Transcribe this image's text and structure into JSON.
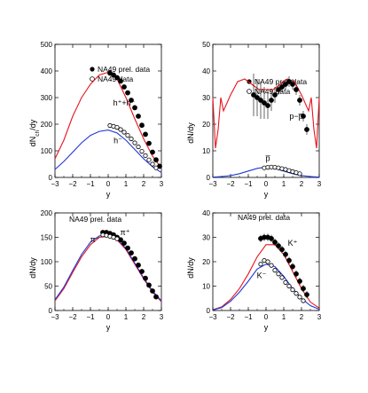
{
  "panels": [
    {
      "id": "tl",
      "ylabel": "dN_ch/dy",
      "ylabel_main": "dN",
      "ylabel_sub": "ch",
      "ylabel_tail": "/dy",
      "xlabel": "y",
      "legend": [
        {
          "marker": "filled",
          "label": "NA49 prel. data"
        },
        {
          "marker": "open",
          "label": "NA49 data"
        }
      ],
      "annotations": [
        {
          "text": "h⁺+h⁻",
          "x": 0.9,
          "y": 270
        },
        {
          "text": "h⁻",
          "x": 0.55,
          "y": 128
        }
      ]
    },
    {
      "id": "tr",
      "ylabel": "dN/dy",
      "xlabel": "y",
      "legend": [
        {
          "marker": "filled",
          "label": "NA49 prel. data"
        },
        {
          "marker": "open",
          "label": "NA49 data"
        }
      ],
      "annotations": [
        {
          "text": "p−p̅",
          "x": 1.7,
          "y": 22
        },
        {
          "text": "p̅",
          "x": 0.1,
          "y": 6.2
        }
      ]
    },
    {
      "id": "bl",
      "ylabel": "dN/dy",
      "xlabel": "y",
      "title": "NA49 prel. data",
      "annotations": [
        {
          "text": "π⁺",
          "x": 0.95,
          "y": 155
        },
        {
          "text": "π⁻",
          "x": -0.75,
          "y": 140
        }
      ]
    },
    {
      "id": "br",
      "ylabel": "dN/dy",
      "xlabel": "y",
      "title": "NA49 prel. data",
      "annotations": [
        {
          "text": "K⁺",
          "x": 1.5,
          "y": 26.5
        },
        {
          "text": "K⁻",
          "x": -0.25,
          "y": 13.2
        }
      ]
    }
  ],
  "chart_data": [
    {
      "type": "line",
      "xlim": [
        -3,
        3
      ],
      "ylim": [
        0,
        500
      ],
      "xticks": [
        -3,
        -2,
        -1,
        0,
        1,
        2,
        3
      ],
      "yticks": [
        0,
        100,
        200,
        300,
        400,
        500
      ],
      "series": [
        {
          "name": "h⁺+h⁻",
          "kind": "line",
          "color": "#e8141c",
          "x": [
            -3,
            -2.5,
            -2,
            -1.5,
            -1,
            -0.5,
            0,
            0.5,
            1,
            1.5,
            2,
            2.5,
            3
          ],
          "y": [
            70,
            140,
            230,
            300,
            350,
            385,
            395,
            370,
            300,
            220,
            145,
            80,
            35
          ]
        },
        {
          "name": "h⁻",
          "kind": "line",
          "color": "#1f37d6",
          "x": [
            -3,
            -2.5,
            -2,
            -1.5,
            -1,
            -0.5,
            0,
            0.5,
            1,
            1.5,
            2,
            2.5,
            3
          ],
          "y": [
            30,
            60,
            95,
            130,
            158,
            173,
            178,
            167,
            140,
            105,
            70,
            40,
            18
          ]
        },
        {
          "name": "NA49 prel. data",
          "kind": "filled",
          "x": [
            0.1,
            0.3,
            0.5,
            0.7,
            0.9,
            1.1,
            1.3,
            1.5,
            1.7,
            1.9,
            2.1,
            2.3,
            2.5,
            2.7,
            2.9
          ],
          "y": [
            392,
            385,
            375,
            362,
            340,
            318,
            290,
            262,
            230,
            196,
            162,
            128,
            95,
            66,
            42
          ]
        },
        {
          "name": "NA49 data",
          "kind": "open",
          "x": [
            0.1,
            0.3,
            0.5,
            0.7,
            0.9,
            1.1,
            1.3,
            1.5,
            1.7,
            1.9,
            2.1,
            2.3,
            2.5,
            2.7
          ],
          "y": [
            195,
            192,
            188,
            180,
            170,
            158,
            145,
            130,
            115,
            98,
            82,
            66,
            50,
            36
          ]
        }
      ]
    },
    {
      "type": "line",
      "xlim": [
        -3,
        3
      ],
      "ylim": [
        0,
        50
      ],
      "xticks": [
        -3,
        -2,
        -1,
        0,
        1,
        2,
        3
      ],
      "yticks": [
        0,
        10,
        20,
        30,
        40,
        50
      ],
      "series": [
        {
          "name": "p−p̅",
          "kind": "line",
          "color": "#e8141c",
          "x": [
            -3,
            -2.85,
            -2.7,
            -2.55,
            -2.4,
            -2,
            -1.6,
            -1.2,
            -0.8,
            -0.4,
            0,
            0.4,
            0.8,
            1.2,
            1.6,
            2,
            2.4,
            2.55,
            2.7,
            2.85,
            3
          ],
          "y": [
            30,
            11,
            18,
            30,
            25,
            31,
            36,
            37,
            35,
            33,
            33,
            33,
            35,
            37,
            36,
            31,
            25,
            30,
            18,
            11,
            30
          ]
        },
        {
          "name": "p̅",
          "kind": "line",
          "color": "#1f37d6",
          "x": [
            -3,
            -2.5,
            -2,
            -1.5,
            -1,
            -0.5,
            0,
            0.5,
            1,
            1.5,
            2,
            2.5,
            3
          ],
          "y": [
            0.1,
            0.3,
            0.7,
            1.4,
            2.4,
            3.4,
            3.9,
            3.4,
            2.4,
            1.4,
            0.7,
            0.3,
            0.1
          ]
        },
        {
          "name": "NA49 prel. data",
          "kind": "filled",
          "x": [
            -0.7,
            -0.5,
            -0.3,
            -0.1,
            0.1,
            0.3,
            0.5,
            0.7,
            0.9,
            1.1,
            1.3,
            1.5,
            1.7,
            1.9,
            2.1,
            2.3
          ],
          "y": [
            31,
            30,
            29,
            28,
            27,
            29,
            31,
            33,
            34,
            35,
            36,
            35,
            33,
            29,
            23,
            18
          ],
          "err": [
            8,
            7,
            7,
            6,
            5,
            4,
            3,
            2,
            2,
            2,
            2,
            2,
            2,
            2,
            2,
            2
          ]
        },
        {
          "name": "NA49 data",
          "kind": "open",
          "x": [
            -0.1,
            0.1,
            0.3,
            0.5,
            0.7,
            0.9,
            1.1,
            1.3,
            1.5,
            1.7,
            1.9
          ],
          "y": [
            3.6,
            3.8,
            3.9,
            3.8,
            3.6,
            3.3,
            3.0,
            2.6,
            2.2,
            1.8,
            1.4
          ]
        }
      ]
    },
    {
      "type": "line",
      "xlim": [
        -3,
        3
      ],
      "ylim": [
        0,
        200
      ],
      "xticks": [
        -3,
        -2,
        -1,
        0,
        1,
        2,
        3
      ],
      "yticks": [
        0,
        50,
        100,
        150,
        200
      ],
      "series": [
        {
          "name": "π⁺",
          "kind": "line",
          "color": "#e8141c",
          "x": [
            -3,
            -2.5,
            -2,
            -1.5,
            -1,
            -0.5,
            0,
            0.5,
            1,
            1.5,
            2,
            2.5,
            3
          ],
          "y": [
            20,
            45,
            78,
            110,
            135,
            150,
            152,
            145,
            125,
            95,
            65,
            38,
            18
          ]
        },
        {
          "name": "π⁻",
          "kind": "line",
          "color": "#1f37d6",
          "x": [
            -3,
            -2.5,
            -2,
            -1.5,
            -1,
            -0.5,
            0,
            0.5,
            1,
            1.5,
            2,
            2.5,
            3
          ],
          "y": [
            22,
            48,
            82,
            115,
            140,
            153,
            154,
            147,
            127,
            97,
            67,
            40,
            20
          ]
        },
        {
          "name": "π⁻ data",
          "kind": "filled",
          "x": [
            -0.3,
            -0.1,
            0.1,
            0.3,
            0.5,
            0.7,
            0.9,
            1.1,
            1.3,
            1.5,
            1.7,
            1.9,
            2.1,
            2.3,
            2.5,
            2.7
          ],
          "y": [
            160,
            160,
            158,
            155,
            150,
            145,
            138,
            128,
            118,
            106,
            93,
            80,
            66,
            52,
            40,
            28
          ]
        },
        {
          "name": "π⁺ data",
          "kind": "open",
          "x": [
            -0.3,
            -0.1,
            0.1,
            0.3,
            0.5
          ],
          "y": [
            155,
            154,
            152,
            150,
            147
          ]
        }
      ]
    },
    {
      "type": "line",
      "xlim": [
        -3,
        3
      ],
      "ylim": [
        0,
        40
      ],
      "xticks": [
        -3,
        -2,
        -1,
        0,
        1,
        2,
        3
      ],
      "yticks": [
        0,
        10,
        20,
        30,
        40
      ],
      "series": [
        {
          "name": "K⁺",
          "kind": "line",
          "color": "#e8141c",
          "x": [
            -3,
            -2.5,
            -2,
            -1.5,
            -1,
            -0.5,
            0,
            0.5,
            1,
            1.5,
            2,
            2.5,
            3
          ],
          "y": [
            0.3,
            1.5,
            4.5,
            9,
            15,
            22,
            27,
            27,
            23,
            16,
            9,
            3.5,
            1
          ]
        },
        {
          "name": "K⁻",
          "kind": "line",
          "color": "#1f37d6",
          "x": [
            -3,
            -2.5,
            -2,
            -1.5,
            -1,
            -0.5,
            0,
            0.5,
            1,
            1.5,
            2,
            2.5,
            3
          ],
          "y": [
            0.2,
            1.2,
            3.8,
            7.5,
            12,
            17,
            19,
            18,
            14,
            9,
            5,
            2,
            0.5
          ]
        },
        {
          "name": "K⁺ data",
          "kind": "filled",
          "x": [
            -0.3,
            -0.1,
            0.1,
            0.3,
            0.5,
            0.7,
            0.9,
            1.1,
            1.3,
            1.5,
            1.7,
            1.9,
            2.1,
            2.3
          ],
          "y": [
            29.5,
            30,
            30,
            29.5,
            28,
            26.5,
            25,
            23,
            20.5,
            18,
            15,
            12,
            9,
            6.5
          ],
          "err": [
            1.5,
            1.5,
            1.5,
            1.5,
            1.5,
            1.5,
            1.5,
            1.5,
            1.5,
            1.5,
            1.5,
            1.5,
            1.5,
            1.5
          ]
        },
        {
          "name": "K⁻ data",
          "kind": "open",
          "x": [
            -0.3,
            -0.1,
            0.1,
            0.3,
            0.5,
            0.7,
            0.9,
            1.1,
            1.3,
            1.5,
            1.7,
            1.9,
            2.1
          ],
          "y": [
            19,
            20.5,
            20,
            18.5,
            16.5,
            15,
            13.5,
            11.5,
            10,
            8.5,
            7,
            5.5,
            4
          ]
        }
      ]
    }
  ]
}
